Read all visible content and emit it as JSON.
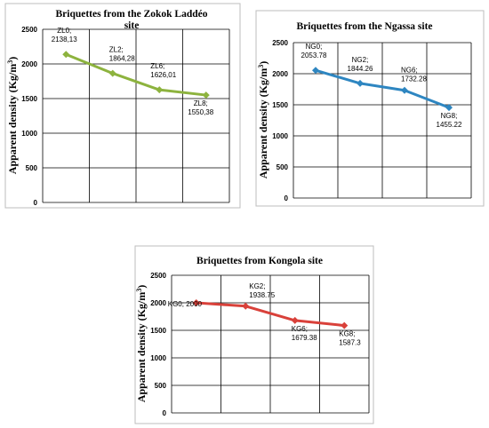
{
  "chart_data": [
    {
      "type": "line",
      "title": "Briquettes from the Zokok Laddéo site",
      "title_lines": [
        "Briquettes from the Zokok Laddéo",
        "site"
      ],
      "ylabel": "Apparent density (Kg/m³)",
      "ylabel_base": "Apparent density (Kg/m",
      "ylabel_sup": "3",
      "ylabel_close": ")",
      "ylim": [
        0,
        2500
      ],
      "yticks": [
        "0",
        "500",
        "1000",
        "1500",
        "2000",
        "2500"
      ],
      "ytick_values": [
        0,
        500,
        1000,
        1500,
        2000,
        2500
      ],
      "color": "#8DB33E",
      "marker": "diamond",
      "categories": [
        "ZL0",
        "ZL2",
        "ZL6",
        "ZL8"
      ],
      "values": [
        2138.13,
        1864.28,
        1626.01,
        1550.38
      ],
      "point_labels": [
        [
          "ZL0;",
          "2138,13"
        ],
        [
          "ZL2;",
          "1864,28"
        ],
        [
          "ZL6;",
          "1626,01"
        ],
        [
          "ZL8;",
          "1550,38"
        ]
      ],
      "grid": true,
      "legend": "none"
    },
    {
      "type": "line",
      "title": "Briquettes from the Ngassa site",
      "title_lines": [
        "Briquettes from the Ngassa site"
      ],
      "ylabel": "Apparent density (Kg/m³)",
      "ylabel_base": "Apparent density (Kg/m",
      "ylabel_sup": "3",
      "ylabel_close": ")",
      "ylim": [
        0,
        2500
      ],
      "yticks": [
        "0",
        "500",
        "1000",
        "1500",
        "2000",
        "2500"
      ],
      "ytick_values": [
        0,
        500,
        1000,
        1500,
        2000,
        2500
      ],
      "color": "#2E86C1",
      "marker": "diamond",
      "categories": [
        "NG0",
        "NG2",
        "NG6",
        "NG8"
      ],
      "values": [
        2053.78,
        1844.26,
        1732.28,
        1455.22
      ],
      "point_labels": [
        [
          "NG0;",
          "2053.78"
        ],
        [
          "NG2;",
          "1844.26"
        ],
        [
          "NG6;",
          "1732.28"
        ],
        [
          "NG8;",
          "1455.22"
        ]
      ],
      "grid": true,
      "legend": "none"
    },
    {
      "type": "line",
      "title": "Briquettes from Kongola site",
      "title_lines": [
        "Briquettes from Kongola site"
      ],
      "ylabel": "Apparent density (Kg/m³)",
      "ylabel_base": "Apparent density (Kg/m",
      "ylabel_sup": "3",
      "ylabel_close": ")",
      "ylim": [
        0,
        2500
      ],
      "yticks": [
        "0",
        "500",
        "1000",
        "1500",
        "2000",
        "2500"
      ],
      "ytick_values": [
        0,
        500,
        1000,
        1500,
        2000,
        2500
      ],
      "color": "#D9413A",
      "marker": "diamond",
      "categories": [
        "KG0",
        "KG2",
        "KG6",
        "KG8"
      ],
      "values": [
        2000,
        1938.75,
        1679.38,
        1587.3
      ],
      "point_labels": [
        [
          "KG0; 2000"
        ],
        [
          "KG2;",
          "1938.75"
        ],
        [
          "KG6;",
          "1679.38"
        ],
        [
          "KG8;",
          "1587.3"
        ]
      ],
      "grid": true,
      "legend": "none"
    }
  ]
}
